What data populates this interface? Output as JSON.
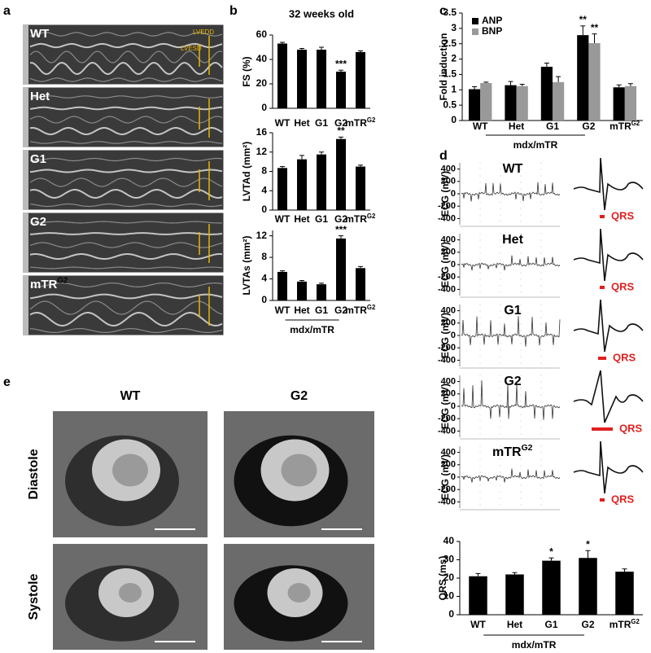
{
  "panels": {
    "a": {
      "label": "a",
      "images": [
        {
          "label": "WT",
          "label_sup": null,
          "annotations": [
            "LVEDD",
            "LVESD"
          ]
        },
        {
          "label": "Het",
          "label_sup": null,
          "annotations": []
        },
        {
          "label": "G1",
          "label_sup": null,
          "annotations": []
        },
        {
          "label": "G2",
          "label_sup": null,
          "annotations": []
        },
        {
          "label": "mTR",
          "label_sup": "G2",
          "annotations": []
        }
      ]
    },
    "b": {
      "label": "b",
      "title": "32 weeks old",
      "charts": [
        {
          "type": "bar",
          "ylabel": "FS (%)",
          "categories": [
            "WT",
            "Het",
            "G1",
            "G2",
            "mTR"
          ],
          "category_superscripts": [
            null,
            null,
            null,
            null,
            "G2"
          ],
          "values": [
            53,
            48,
            48,
            30,
            46
          ],
          "errors": [
            1,
            1,
            2,
            1.2,
            1
          ],
          "significance": [
            null,
            null,
            null,
            "***",
            null
          ],
          "color": "#000000",
          "ylim": [
            0,
            60
          ],
          "yticks": [
            0,
            20,
            40,
            60
          ]
        },
        {
          "type": "bar",
          "ylabel": "LVTAd (mm²)",
          "categories": [
            "WT",
            "Het",
            "G1",
            "G2",
            "mTR"
          ],
          "category_superscripts": [
            null,
            null,
            null,
            null,
            "G2"
          ],
          "values": [
            8.7,
            10.5,
            11.5,
            14.7,
            9
          ],
          "errors": [
            0.3,
            0.8,
            0.5,
            0.4,
            0.3
          ],
          "significance": [
            null,
            null,
            null,
            "**",
            null
          ],
          "color": "#000000",
          "ylim": [
            0,
            16
          ],
          "yticks": [
            0,
            4,
            8,
            12,
            16
          ]
        },
        {
          "type": "bar",
          "ylabel": "LVTAs (mm²)",
          "categories": [
            "WT",
            "Het",
            "G1",
            "G2",
            "mTR"
          ],
          "category_superscripts": [
            null,
            null,
            null,
            null,
            "G2"
          ],
          "values": [
            5.3,
            3.5,
            3.0,
            11.5,
            6.0
          ],
          "errors": [
            0.2,
            0.2,
            0.2,
            0.5,
            0.3
          ],
          "significance": [
            null,
            null,
            null,
            "***",
            null
          ],
          "color": "#000000",
          "ylim": [
            0,
            13
          ],
          "yticks": [
            0,
            4,
            8,
            12
          ],
          "group_label": "mdx/mTR"
        }
      ]
    },
    "c": {
      "label": "c",
      "chart": {
        "type": "grouped_bar",
        "ylabel": "Fold induction",
        "categories": [
          "WT",
          "Het",
          "G1",
          "G2",
          "mTR"
        ],
        "category_superscripts": [
          null,
          null,
          null,
          null,
          "G2"
        ],
        "series": [
          {
            "name": "ANP",
            "color": "#000000",
            "values": [
              1.02,
              1.15,
              1.75,
              2.78,
              1.08
            ],
            "errors": [
              0.08,
              0.12,
              0.12,
              0.3,
              0.08
            ],
            "significance": [
              null,
              null,
              null,
              "**",
              null
            ]
          },
          {
            "name": "BNP",
            "color": "#999999",
            "values": [
              1.22,
              1.12,
              1.25,
              2.52,
              1.12
            ],
            "errors": [
              0.03,
              0.06,
              0.18,
              0.3,
              0.08
            ],
            "significance": [
              null,
              null,
              null,
              "**",
              null
            ]
          }
        ],
        "ylim": [
          0,
          3.5
        ],
        "yticks": [
          0,
          0.5,
          1,
          1.5,
          2,
          2.5,
          3,
          3.5
        ],
        "group_label": "mdx/mTR",
        "legend": "top-left"
      }
    },
    "d": {
      "label": "d",
      "ecg": [
        {
          "label": "WT",
          "label_sup": null,
          "ylabel": "ECG (mV)",
          "ylim": [
            -500,
            500
          ],
          "yticks": [
            400,
            200,
            0,
            -200,
            -400
          ],
          "qrs_label": "QRS"
        },
        {
          "label": "Het",
          "label_sup": null,
          "ylabel": "ECG (mV)",
          "ylim": [
            -500,
            500
          ],
          "yticks": [
            400,
            200,
            0,
            -200,
            -400
          ],
          "qrs_label": "QRS"
        },
        {
          "label": "G1",
          "label_sup": null,
          "ylabel": "ECG (mV)",
          "ylim": [
            -500,
            500
          ],
          "yticks": [
            400,
            200,
            0,
            -200,
            -400
          ],
          "qrs_label": "QRS"
        },
        {
          "label": "G2",
          "label_sup": null,
          "ylabel": "ECG (mV)",
          "ylim": [
            -500,
            500
          ],
          "yticks": [
            400,
            200,
            0,
            -200,
            -400
          ],
          "qrs_label": "QRS"
        },
        {
          "label": "mTR",
          "label_sup": "G2",
          "ylabel": "ECG (mV)",
          "ylim": [
            -500,
            500
          ],
          "yticks": [
            400,
            200,
            0,
            -200,
            -400
          ],
          "qrs_label": "QRS"
        }
      ],
      "qrs_chart": {
        "type": "bar",
        "ylabel": "QRS (ms)",
        "categories": [
          "WT",
          "Het",
          "G1",
          "G2",
          "mTR"
        ],
        "category_superscripts": [
          null,
          null,
          null,
          null,
          "G2"
        ],
        "values": [
          21,
          22,
          29.5,
          31,
          23.5
        ],
        "errors": [
          1.5,
          1,
          1.5,
          4,
          1.5
        ],
        "significance": [
          null,
          null,
          "*",
          "*",
          null
        ],
        "color": "#000000",
        "ylim": [
          0,
          40
        ],
        "yticks": [
          0,
          10,
          20,
          30,
          40
        ],
        "group_label": "mdx/mTR"
      }
    },
    "e": {
      "label": "e",
      "columns": [
        "WT",
        "G2"
      ],
      "rows": [
        "Diastole",
        "Systole"
      ]
    }
  }
}
